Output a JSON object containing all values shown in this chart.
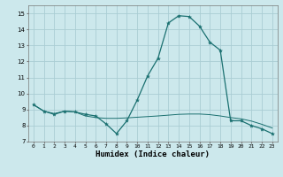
{
  "title": "",
  "xlabel": "Humidex (Indice chaleur)",
  "ylabel": "",
  "bg_color": "#cce8ec",
  "grid_color": "#aacdd4",
  "line_color": "#1a7070",
  "xlim": [
    -0.5,
    23.5
  ],
  "ylim": [
    7,
    15.5
  ],
  "yticks": [
    7,
    8,
    9,
    10,
    11,
    12,
    13,
    14,
    15
  ],
  "xticks": [
    0,
    1,
    2,
    3,
    4,
    5,
    6,
    7,
    8,
    9,
    10,
    11,
    12,
    13,
    14,
    15,
    16,
    17,
    18,
    19,
    20,
    21,
    22,
    23
  ],
  "line1_x": [
    0,
    1,
    2,
    3,
    4,
    5,
    6,
    7,
    8,
    9,
    10,
    11,
    12,
    13,
    14,
    15,
    16,
    17,
    18,
    19,
    20,
    21,
    22,
    23
  ],
  "line1_y": [
    9.3,
    8.9,
    8.7,
    8.9,
    8.85,
    8.7,
    8.6,
    8.1,
    7.5,
    8.3,
    9.6,
    11.1,
    12.2,
    14.4,
    14.85,
    14.8,
    14.2,
    13.2,
    12.7,
    8.3,
    8.3,
    8.0,
    7.8,
    7.5
  ],
  "line2_x": [
    0,
    1,
    2,
    3,
    4,
    5,
    6,
    7,
    8,
    9,
    10,
    11,
    12,
    13,
    14,
    15,
    16,
    17,
    18,
    19,
    20,
    21,
    22,
    23
  ],
  "line2_y": [
    9.3,
    8.9,
    8.75,
    8.9,
    8.85,
    8.6,
    8.5,
    8.45,
    8.45,
    8.48,
    8.52,
    8.56,
    8.6,
    8.65,
    8.7,
    8.72,
    8.72,
    8.68,
    8.6,
    8.5,
    8.42,
    8.28,
    8.08,
    7.85
  ]
}
